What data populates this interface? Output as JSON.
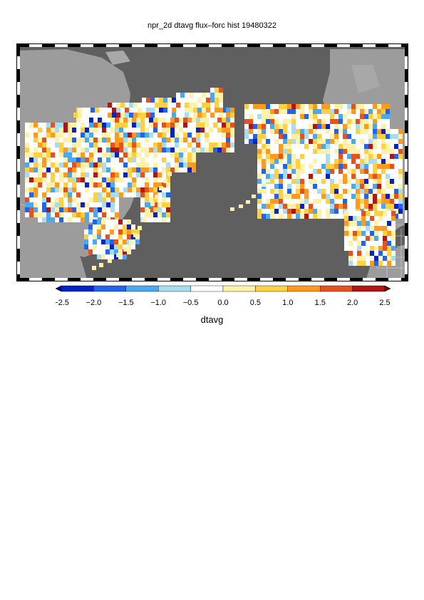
{
  "title": "npr_2d dtavg flux–forc hist 19480322",
  "colorbar": {
    "label": "dtavg",
    "ticks": [
      "−2.5",
      "−2.0",
      "−1.5",
      "−1.0",
      "−0.5",
      "0.0",
      "0.5",
      "1.0",
      "1.5",
      "2.0",
      "2.5"
    ],
    "range": [
      -2.5,
      2.5
    ],
    "colors": [
      "#00007a",
      "#0022c8",
      "#1e64f0",
      "#4aa8f0",
      "#a8dcf0",
      "#ffffff",
      "#fff2a8",
      "#ffd040",
      "#ff9a1e",
      "#e8501e",
      "#b41414",
      "#7a0000"
    ]
  },
  "map": {
    "ocean_color": "#5f5f5f",
    "land_color": "#9c9c9c",
    "frame_style": "alternating black/white border ticks"
  }
}
